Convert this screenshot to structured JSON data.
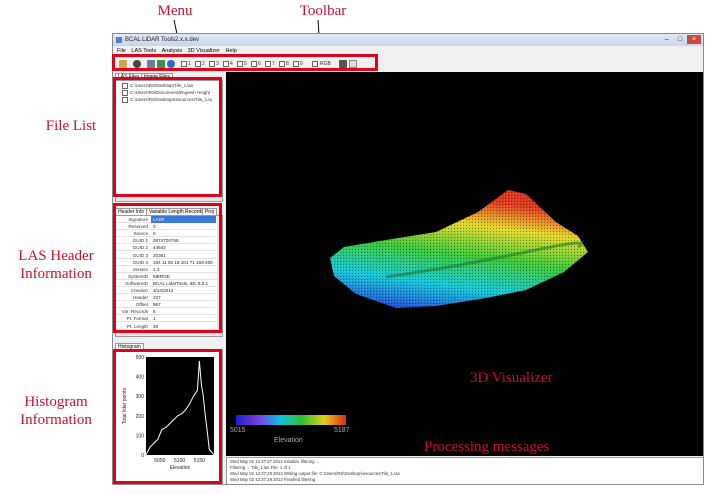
{
  "annotations": {
    "menu": "Menu",
    "toolbar": "Toolbar",
    "file_list": "File List",
    "las_header": [
      "LAS Header",
      "Information"
    ],
    "histogram": [
      "Histogram",
      "Information"
    ],
    "visualizer": "3D Visualizer",
    "processing": "Processing messages"
  },
  "window": {
    "title": "BCAL LiDAR Tools2.x.x.dev",
    "controls": [
      "–",
      "□",
      "×"
    ]
  },
  "menu": [
    "File",
    "LAS Tools",
    "Analysis",
    "3D Visualizer",
    "Help"
  ],
  "toolbar": {
    "buttons": [
      "open-icon",
      "eye-icon",
      "grid-icon",
      "palette-icon",
      "globe-icon"
    ],
    "classes": [
      "1",
      "2",
      "3",
      "4",
      "5",
      "6",
      "7",
      "8",
      "9"
    ],
    "rgb_label": "RGB",
    "end_buttons": [
      "export-icon",
      "blank-icon"
    ]
  },
  "file_panel": {
    "tabs": [
      "LAS Files",
      "Image Files"
    ],
    "files": [
      "C:\\Users\\RS\\Desktop\\Tile_1.las",
      "C:\\Users\\RS\\Documents\\Rupesh Height",
      "C:\\Users\\RS\\Desktop\\resources\\Tile_1.la"
    ]
  },
  "header_panel": {
    "tabs": [
      "Header Info",
      "Variable Length Records",
      "Proj"
    ],
    "rows": [
      {
        "key": "Signature",
        "value": "LASF"
      },
      {
        "key": "Reserved",
        "value": "0"
      },
      {
        "key": "Source",
        "value": "0"
      },
      {
        "key": "GUID 1",
        "value": "2874726765"
      },
      {
        "key": "GUID 2",
        "value": "44642"
      },
      {
        "key": "GUID 3",
        "value": "20361"
      },
      {
        "key": "GUID 4",
        "value": "164 11 93 16 101 71 169 200"
      },
      {
        "key": "Version",
        "value": "1.2"
      },
      {
        "key": "SystemID",
        "value": "MERGE"
      },
      {
        "key": "SoftwareID",
        "value": "BCAL LidarTools, IDL 8.0.1"
      },
      {
        "key": "Creation",
        "value": "3/14/2012"
      },
      {
        "key": "Header",
        "value": "227"
      },
      {
        "key": "Offset",
        "value": "967"
      },
      {
        "key": "Var. Records",
        "value": "5"
      },
      {
        "key": "Pt. Format",
        "value": "1"
      },
      {
        "key": "Pt. Length",
        "value": "28"
      }
    ]
  },
  "histogram_panel": {
    "tab": "Histogram",
    "ylabel": "Total lidar points",
    "xlabel": "Elevation",
    "y_ticks": [
      "500",
      "400",
      "300",
      "200",
      "100",
      "0"
    ],
    "x_ticks": [
      "5050",
      "5100",
      "5150"
    ]
  },
  "chart_data": {
    "type": "line",
    "title": "",
    "xlabel": "Elevation",
    "ylabel": "Total lidar points",
    "xlim": [
      5015,
      5187
    ],
    "ylim": [
      0,
      500
    ],
    "x": [
      5015,
      5025,
      5035,
      5045,
      5055,
      5065,
      5075,
      5085,
      5095,
      5105,
      5115,
      5125,
      5135,
      5145,
      5150,
      5155,
      5160,
      5165,
      5170,
      5175,
      5187
    ],
    "values": [
      0,
      40,
      60,
      80,
      130,
      140,
      160,
      180,
      200,
      210,
      230,
      260,
      300,
      330,
      480,
      360,
      300,
      200,
      120,
      30,
      0
    ],
    "grid": false
  },
  "visualizer": {
    "colorbar_min": "5015",
    "colorbar_max": "5187",
    "colorbar_label": "Elevation"
  },
  "messages": [
    "Wed May 02 12:27:27 2012 Initialize filtering ...",
    "Filtering ... Tile_1.las File: 1 of 1",
    "Wed May 02 12:27:29 2012 Writing output file: C:\\Users\\RS\\Desktop\\resources\\Tile_1.las",
    "Wed May 02 12:27:29 2012 Finished filtering"
  ]
}
